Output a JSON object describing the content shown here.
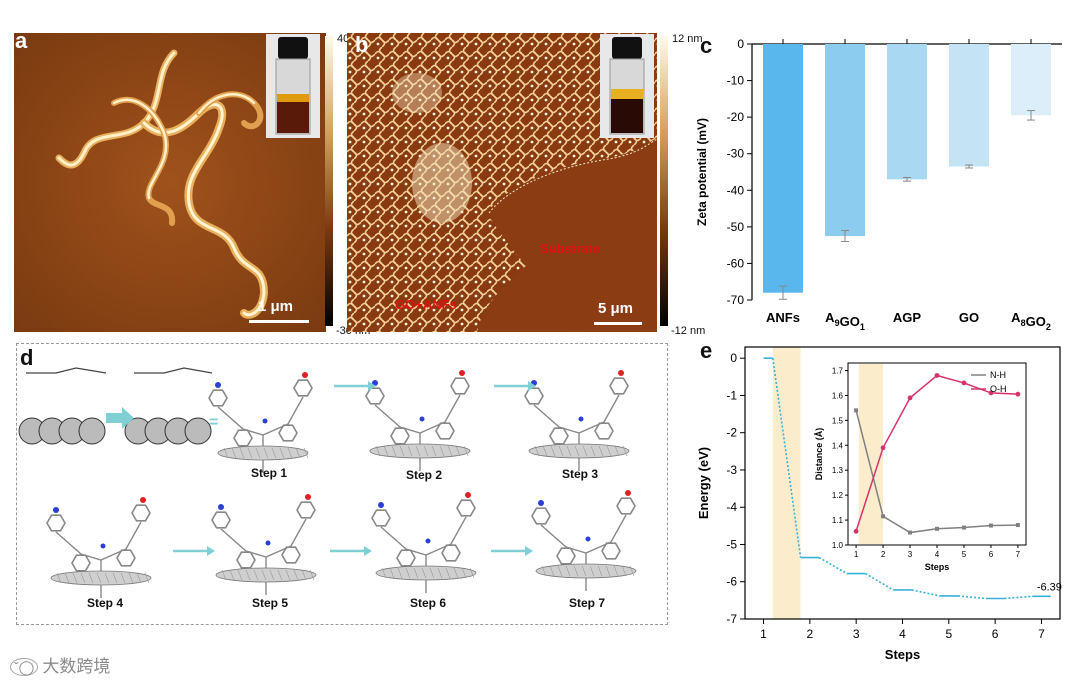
{
  "panels": {
    "a": {
      "label": "a",
      "scale_bar": "1 μm",
      "colorbar_max": "40 nm",
      "colorbar_min": "-30 nm"
    },
    "b": {
      "label": "b",
      "scale_bar": "5 μm",
      "colorbar_max": "12 nm",
      "colorbar_min": "-12 nm",
      "region_labels": {
        "substrate": "Substrate",
        "composite": "GO+ANFs"
      }
    },
    "c": {
      "label": "c"
    },
    "d": {
      "label": "d",
      "steps": [
        "Step 1",
        "Step 2",
        "Step 3",
        "Step 4",
        "Step 5",
        "Step 6",
        "Step 7"
      ]
    },
    "e": {
      "label": "e"
    }
  },
  "chart_data": [
    {
      "type": "bar",
      "title": "",
      "xlabel": "",
      "ylabel": "Zeta potential (mV)",
      "categories": [
        "ANFs",
        "A9GO1",
        "AGP",
        "GO",
        "A8GO2"
      ],
      "category_display": [
        {
          "main": "ANFs",
          "parts": [
            [
              "ANFs",
              ""
            ]
          ]
        },
        {
          "main": "A9GO1",
          "parts": [
            [
              "A",
              "9"
            ],
            [
              "GO",
              "1"
            ]
          ]
        },
        {
          "main": "AGP",
          "parts": [
            [
              "AGP",
              ""
            ]
          ]
        },
        {
          "main": "GO",
          "parts": [
            [
              "GO",
              ""
            ]
          ]
        },
        {
          "main": "A8GO2",
          "parts": [
            [
              "A",
              "8"
            ],
            [
              "GO",
              "2"
            ]
          ]
        }
      ],
      "values": [
        -68,
        -52.5,
        -37,
        -33.5,
        -19.5
      ],
      "errors": [
        1.8,
        1.5,
        0.5,
        0.4,
        1.3
      ],
      "colors": [
        "#5ab7ee",
        "#8ccdef",
        "#a8d8f2",
        "#c4e4f6",
        "#dbeefa"
      ],
      "ylim": [
        -70,
        0
      ],
      "yticks": [
        0,
        -10,
        -20,
        -30,
        -40,
        -50,
        -60,
        -70
      ]
    },
    {
      "type": "line",
      "title": "",
      "xlabel": "Steps",
      "ylabel": "Energy (eV)",
      "x": [
        1,
        1.2,
        1.8,
        2.2,
        2.8,
        3.2,
        3.8,
        4.2,
        4.8,
        5.2,
        5.8,
        6.2,
        6.8,
        7.2
      ],
      "values": [
        0,
        0,
        -5.35,
        -5.35,
        -5.78,
        -5.78,
        -6.22,
        -6.22,
        -6.38,
        -6.38,
        -6.45,
        -6.45,
        -6.39,
        -6.39
      ],
      "xticks": [
        1,
        2,
        3,
        4,
        5,
        6,
        7
      ],
      "yticks": [
        0,
        -1,
        -2,
        -3,
        -4,
        -5,
        -6,
        -7
      ],
      "ylim": [
        -7,
        0.3
      ],
      "final_value_label": "-6.39",
      "highlight_x_range": [
        1.2,
        1.8
      ],
      "line_color": "#3ab0d8"
    },
    {
      "type": "line",
      "title": "",
      "xlabel": "Steps",
      "ylabel": "Distance (Å)",
      "x": [
        1,
        2,
        3,
        4,
        5,
        6,
        7
      ],
      "series": [
        {
          "name": "N-H",
          "values": [
            1.54,
            1.115,
            1.05,
            1.065,
            1.07,
            1.078,
            1.08
          ],
          "color": "#808080"
        },
        {
          "name": "O-H",
          "values": [
            1.055,
            1.39,
            1.59,
            1.68,
            1.65,
            1.61,
            1.605
          ],
          "color": "#d6336c"
        }
      ],
      "xticks": [
        1,
        2,
        3,
        4,
        5,
        6,
        7
      ],
      "yticks": [
        1.0,
        1.1,
        1.2,
        1.3,
        1.4,
        1.5,
        1.6,
        1.7
      ],
      "ylim": [
        1.0,
        1.73
      ],
      "highlight_x_range": [
        1.1,
        2.0
      ]
    }
  ],
  "watermark": "大数跨境"
}
